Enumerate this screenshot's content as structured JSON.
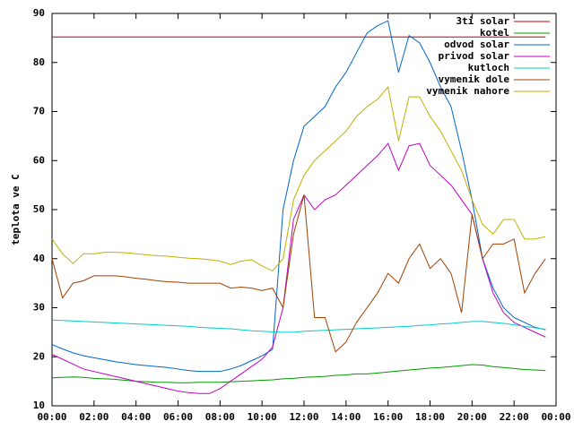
{
  "chart_data": {
    "type": "line",
    "y_label": "teplota ve C",
    "x": [
      0,
      0.5,
      1,
      1.5,
      2,
      2.5,
      3,
      3.5,
      4,
      4.5,
      5,
      5.5,
      6,
      6.5,
      7,
      7.5,
      8,
      8.5,
      9,
      9.5,
      10,
      10.5,
      11,
      11.5,
      12,
      12.5,
      13,
      13.5,
      14,
      14.5,
      15,
      15.5,
      16,
      16.5,
      17,
      17.5,
      18,
      18.5,
      19,
      19.5,
      20,
      20.5,
      21,
      21.5,
      22,
      22.5,
      23,
      23.5
    ],
    "xlim": [
      0,
      24
    ],
    "xticks": [
      {
        "value": 0,
        "label": "00:00"
      },
      {
        "value": 2,
        "label": "02:00"
      },
      {
        "value": 4,
        "label": "04:00"
      },
      {
        "value": 6,
        "label": "06:00"
      },
      {
        "value": 8,
        "label": "08:00"
      },
      {
        "value": 10,
        "label": "10:00"
      },
      {
        "value": 12,
        "label": "12:00"
      },
      {
        "value": 14,
        "label": "14:00"
      },
      {
        "value": 16,
        "label": "16:00"
      },
      {
        "value": 18,
        "label": "18:00"
      },
      {
        "value": 20,
        "label": "20:00"
      },
      {
        "value": 22,
        "label": "22:00"
      },
      {
        "value": 24,
        "label": "00:00"
      }
    ],
    "ylim": [
      10,
      90
    ],
    "yticks": [
      10,
      20,
      30,
      40,
      50,
      60,
      70,
      80,
      90
    ],
    "grid": false,
    "legend_position": "top-right",
    "series": [
      {
        "name": "3ti solar",
        "color": "#c00000",
        "values": [
          85.2,
          85.2,
          85.2,
          85.2,
          85.2,
          85.2,
          85.2,
          85.2,
          85.2,
          85.2,
          85.2,
          85.2,
          85.2,
          85.2,
          85.2,
          85.2,
          85.2,
          85.2,
          85.2,
          85.2,
          85.2,
          85.2,
          85.2,
          85.2,
          85.2,
          85.2,
          85.2,
          85.2,
          85.2,
          85.2,
          85.2,
          85.2,
          85.2,
          85.2,
          85.2,
          85.2,
          85.2,
          85.2,
          85.2,
          85.2,
          85.2,
          85.2,
          85.2,
          85.2,
          85.2,
          85.2,
          85.2,
          85.2
        ]
      },
      {
        "name": "kotel",
        "color": "#009900",
        "values": [
          15.7,
          15.8,
          15.9,
          15.8,
          15.6,
          15.5,
          15.4,
          15.2,
          15.0,
          14.9,
          14.8,
          14.8,
          14.7,
          14.7,
          14.8,
          14.8,
          14.8,
          14.9,
          15.0,
          15.1,
          15.2,
          15.3,
          15.5,
          15.6,
          15.8,
          15.9,
          16.0,
          16.2,
          16.3,
          16.5,
          16.5,
          16.7,
          16.9,
          17.1,
          17.3,
          17.5,
          17.7,
          17.8,
          18.0,
          18.2,
          18.4,
          18.3,
          18.0,
          17.8,
          17.6,
          17.4,
          17.3,
          17.2
        ]
      },
      {
        "name": "odvod solar",
        "color": "#0066cc",
        "values": [
          22.5,
          21.6,
          20.8,
          20.2,
          19.8,
          19.4,
          19.0,
          18.7,
          18.4,
          18.2,
          18.0,
          17.8,
          17.5,
          17.2,
          17.0,
          17.0,
          17.0,
          17.5,
          18.2,
          19.2,
          20.2,
          21.5,
          50,
          60,
          67,
          69,
          71,
          75,
          78,
          82,
          86,
          87.5,
          88.5,
          78,
          85.5,
          84,
          80,
          75,
          71,
          62,
          52,
          40,
          34,
          30,
          28,
          27,
          26,
          25.5
        ]
      },
      {
        "name": "privod solar",
        "color": "#c000c0",
        "values": [
          20.5,
          19.5,
          18.5,
          17.5,
          17,
          16.5,
          16,
          15.5,
          15,
          14.5,
          14,
          13.5,
          13,
          12.7,
          12.5,
          12.5,
          13.5,
          15,
          16.5,
          18,
          19.5,
          22,
          30,
          48,
          53,
          50,
          52,
          53,
          55,
          57,
          59,
          61,
          63.5,
          58,
          63,
          63.5,
          59,
          57,
          55,
          52,
          49,
          40,
          33,
          29,
          27,
          26,
          25,
          24
        ]
      },
      {
        "name": "kutloch",
        "color": "#00cccc",
        "values": [
          27.5,
          27.4,
          27.3,
          27.2,
          27.1,
          27.0,
          26.9,
          26.8,
          26.7,
          26.6,
          26.5,
          26.4,
          26.3,
          26.2,
          26.0,
          25.9,
          25.8,
          25.7,
          25.5,
          25.3,
          25.2,
          25.1,
          25.0,
          25.0,
          25.2,
          25.3,
          25.4,
          25.5,
          25.6,
          25.7,
          25.8,
          25.9,
          26.0,
          26.1,
          26.2,
          26.4,
          26.5,
          26.7,
          26.8,
          27.0,
          27.2,
          27.2,
          27.0,
          26.8,
          26.5,
          26.2,
          25.9,
          25.6
        ]
      },
      {
        "name": "vymenik dole",
        "color": "#a04000",
        "values": [
          40,
          32,
          35,
          35.5,
          36.5,
          36.5,
          36.5,
          36.3,
          36,
          35.8,
          35.5,
          35.3,
          35.2,
          35,
          35,
          35,
          35,
          34,
          34.2,
          34,
          33.5,
          34,
          30,
          45,
          53,
          28,
          28,
          21,
          23,
          27,
          30,
          33,
          37,
          35,
          40,
          43,
          38,
          40,
          37,
          29,
          49,
          40,
          43,
          43,
          44,
          33,
          37,
          40
        ]
      },
      {
        "name": "vymenik nahore",
        "color": "#c0b000",
        "values": [
          44,
          41,
          39,
          41,
          41,
          41.3,
          41.3,
          41.2,
          41,
          40.8,
          40.6,
          40.5,
          40.3,
          40.1,
          40,
          39.8,
          39.5,
          38.8,
          39.5,
          39.8,
          38.5,
          37.5,
          40,
          52,
          57,
          60,
          62,
          64,
          66,
          69,
          71,
          72.5,
          75,
          64,
          73,
          73,
          69,
          66,
          62,
          58,
          52,
          47,
          45,
          48,
          48,
          44,
          44,
          44.5
        ]
      }
    ]
  }
}
